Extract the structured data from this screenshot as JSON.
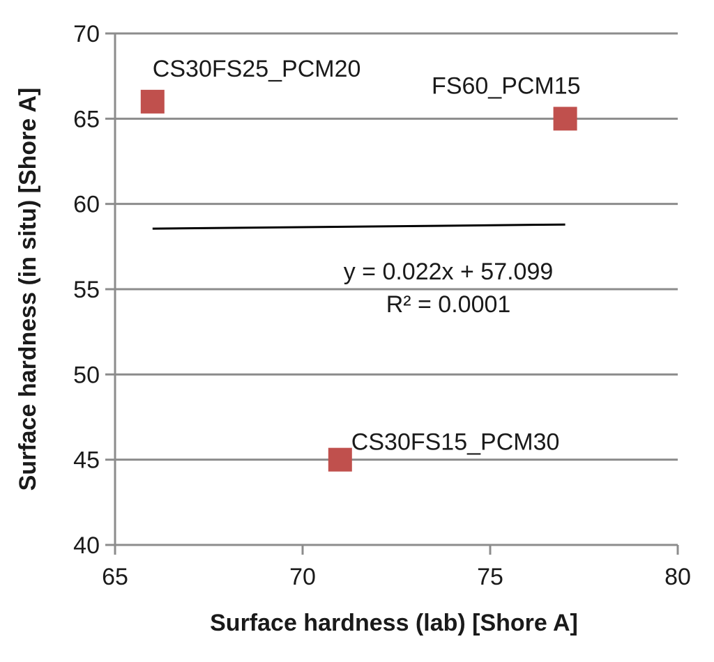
{
  "chart_data": {
    "type": "scatter",
    "title": "",
    "xlabel": "Surface hardness (lab) [Shore A]",
    "ylabel": "Surface hardness (in situ) [Shore A]",
    "xlim": [
      65,
      80
    ],
    "ylim": [
      40,
      70
    ],
    "x_ticks": [
      65,
      70,
      75,
      80
    ],
    "y_ticks": [
      40,
      45,
      50,
      55,
      60,
      65,
      70
    ],
    "grid": "horizontal",
    "legend": "none",
    "marker": "square",
    "marker_color": "#c0504d",
    "trendline_color": "#000000",
    "points": [
      {
        "label": "CS30FS25_PCM20",
        "x": 66,
        "y": 66
      },
      {
        "label": "FS60_PCM15",
        "x": 77,
        "y": 65
      },
      {
        "label": "CS30FS15_PCM30",
        "x": 71,
        "y": 45
      }
    ],
    "trendline": {
      "type": "linear",
      "slope": 0.022,
      "intercept": 57.099,
      "x_range": [
        66,
        77
      ],
      "equation": "y = 0.022x + 57.099",
      "r_squared": "R² = 0.0001"
    }
  }
}
